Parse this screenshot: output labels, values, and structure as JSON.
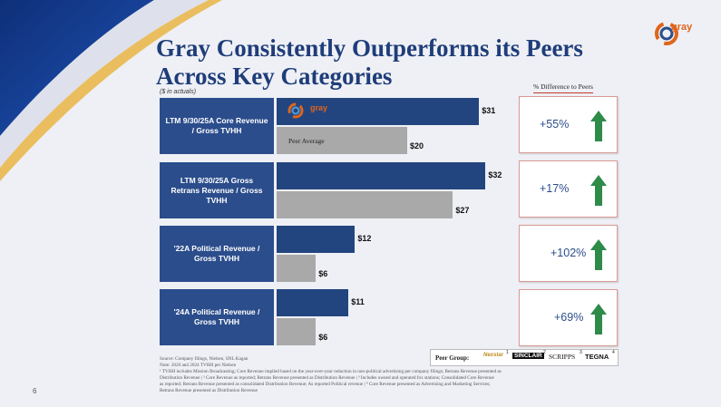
{
  "header": {
    "title_line1": "Gray Consistently Outperforms its Peers",
    "title_line2": "Across Key Categories",
    "logo_text": "gray",
    "units_note": "($ in actuals)",
    "pct_header": "% Difference to Peers"
  },
  "legend": {
    "gray_logo": "gray",
    "peer_label": "Peer Average"
  },
  "categories": [
    {
      "label": "LTM 9/30/25A Core Revenue / Gross TVHH",
      "gray_value": "$31",
      "peer_value": "$20",
      "diff": "+55%"
    },
    {
      "label": "LTM 9/30/25A Gross Retrans Revenue / Gross TVHH",
      "gray_value": "$32",
      "peer_value": "$27",
      "diff": "+17%"
    },
    {
      "label": "'22A Political Revenue / Gross TVHH",
      "gray_value": "$12",
      "peer_value": "$6",
      "diff": "+102%"
    },
    {
      "label": "'24A Political Revenue / Gross TVHH",
      "gray_value": "$11",
      "peer_value": "$6",
      "diff": "+69%"
    }
  ],
  "chart_data": {
    "type": "bar",
    "orientation": "horizontal",
    "categories": [
      "LTM 9/30/25A Core Revenue / Gross TVHH",
      "LTM 9/30/25A Gross Retrans Revenue / Gross TVHH",
      "'22A Political Revenue / Gross TVHH",
      "'24A Political Revenue / Gross TVHH"
    ],
    "series": [
      {
        "name": "gray",
        "values": [
          31,
          32,
          12,
          11
        ],
        "color": "#23457f"
      },
      {
        "name": "Peer Average",
        "values": [
          20,
          27,
          6,
          6
        ],
        "color": "#a9a9a9"
      }
    ],
    "pct_difference": [
      "+55%",
      "+17%",
      "+102%",
      "+69%"
    ],
    "title": "Gray Consistently Outperforms its Peers Across Key Categories",
    "xlabel": "",
    "ylabel": "",
    "unit_note": "($ in actuals)",
    "xlim": [
      0,
      32
    ]
  },
  "footnotes": {
    "line1": "Source: Company filings, Nielsen, SNL Kagan",
    "line2": "Note: 2020 and 2024 TVHH per Nielsen",
    "line3": "¹ TVHH includes Mission Broadcasting; Core Revenue implied based on the year-over-year reduction in non-political advertising per company filings; Retrans Revenue presented as",
    "line4": "Distribution Revenue | ² Core Revenue as reported; Retrans Revenue presented as Distribution Revenue | ³ Includes owned and operated fox stations; Consolidated Core Revenue",
    "line5": "as reported; Retrans Revenue presented as consolidated Distribution Revenue; As reported Political revenue | ⁴ Core Revenue presented as Advertising and Marketing Services;",
    "line6": "Retrans Revenue presented as Distribution Revenue"
  },
  "peer_group": {
    "label": "Peer Group:",
    "peers": [
      "Nexstar",
      "SINCLAIR",
      "SCRIPPS",
      "TEGNA"
    ],
    "superscripts": [
      "1",
      "2",
      "3",
      "4"
    ]
  },
  "page_number": "6",
  "colors": {
    "brand_blue": "#23457f",
    "peer_gray": "#a9a9a9",
    "arrow_green": "#2e8b4a",
    "title_blue": "#1f3d7a",
    "accent_orange": "#e0651c"
  }
}
